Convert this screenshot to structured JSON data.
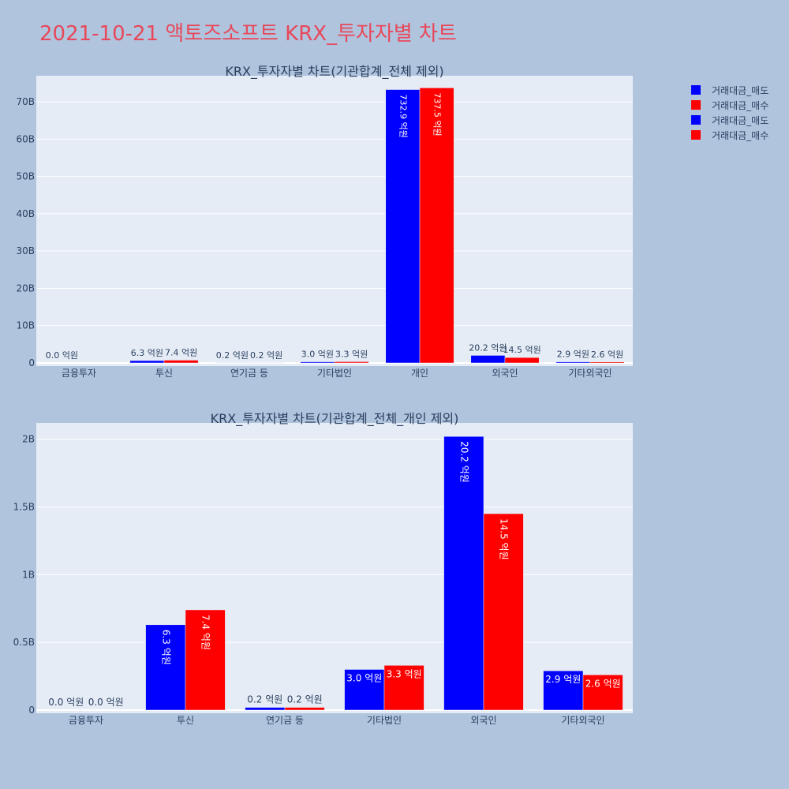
{
  "page": {
    "title": "2021-10-21 액토즈소프트 KRX_투자자별 차트"
  },
  "legend": {
    "placement": "top-right",
    "items": [
      {
        "label": "거래대금_매도",
        "color": "#0000ff"
      },
      {
        "label": "거래대금_매수",
        "color": "#ff0000"
      },
      {
        "label": "거래대금_매도",
        "color": "#0000ff"
      },
      {
        "label": "거래대금_매수",
        "color": "#ff0000"
      }
    ]
  },
  "colors": {
    "background": "#b0c4de",
    "plot_background": "#e5ecf6",
    "sell": "#0000ff",
    "buy": "#ff0000",
    "title": "#e8485a"
  },
  "chart_data": [
    {
      "type": "bar",
      "title": "KRX_투자자별 차트(기관합계_전체 제외)",
      "categories": [
        "금융투자",
        "투신",
        "연기금 등",
        "기타법인",
        "개인",
        "외국인",
        "기타외국인"
      ],
      "series": [
        {
          "name": "거래대금_매도",
          "values": [
            0.0,
            630000000,
            20000000,
            300000000,
            73290000000,
            2020000000,
            290000000
          ],
          "labels": [
            "0.0 억원",
            "6.3 억원",
            "0.2 억원",
            "3.0 억원",
            "732.9 억원",
            "20.2 억원",
            "2.9 억원"
          ]
        },
        {
          "name": "거래대금_매수",
          "values": [
            0.0,
            740000000,
            20000000,
            330000000,
            73750000000,
            1450000000,
            260000000
          ],
          "labels": [
            "",
            "7.4 억원",
            "0.2 억원",
            "3.3 억원",
            "737.5 억원",
            "14.5 억원",
            "2.6 억원"
          ]
        }
      ],
      "yticks": [
        0,
        10000000000,
        20000000000,
        30000000000,
        40000000000,
        50000000000,
        60000000000,
        70000000000
      ],
      "ytick_labels": [
        "0",
        "10B",
        "20B",
        "30B",
        "40B",
        "50B",
        "60B",
        "70B"
      ],
      "ylim": [
        0,
        77000000000
      ],
      "grid": true
    },
    {
      "type": "bar",
      "title": "KRX_투자자별 차트(기관합계_전체_개인 제외)",
      "categories": [
        "금융투자",
        "투신",
        "연기금 등",
        "기타법인",
        "외국인",
        "기타외국인"
      ],
      "series": [
        {
          "name": "거래대금_매도",
          "values": [
            0.0,
            630000000,
            20000000,
            300000000,
            2020000000,
            290000000
          ],
          "labels": [
            "0.0 억원",
            "6.3 억원",
            "0.2 억원",
            "3.0 억원",
            "20.2 억원",
            "2.9 억원"
          ]
        },
        {
          "name": "거래대금_매수",
          "values": [
            0.0,
            740000000,
            20000000,
            330000000,
            1450000000,
            260000000
          ],
          "labels": [
            "0.0 억원",
            "7.4 억원",
            "0.2 억원",
            "3.3 억원",
            "14.5 억원",
            "2.6 억원"
          ]
        }
      ],
      "yticks": [
        0,
        500000000,
        1000000000,
        1500000000,
        2000000000
      ],
      "ytick_labels": [
        "0",
        "0.5B",
        "1B",
        "1.5B",
        "2B"
      ],
      "ylim": [
        0,
        2120000000
      ],
      "grid": true
    }
  ]
}
